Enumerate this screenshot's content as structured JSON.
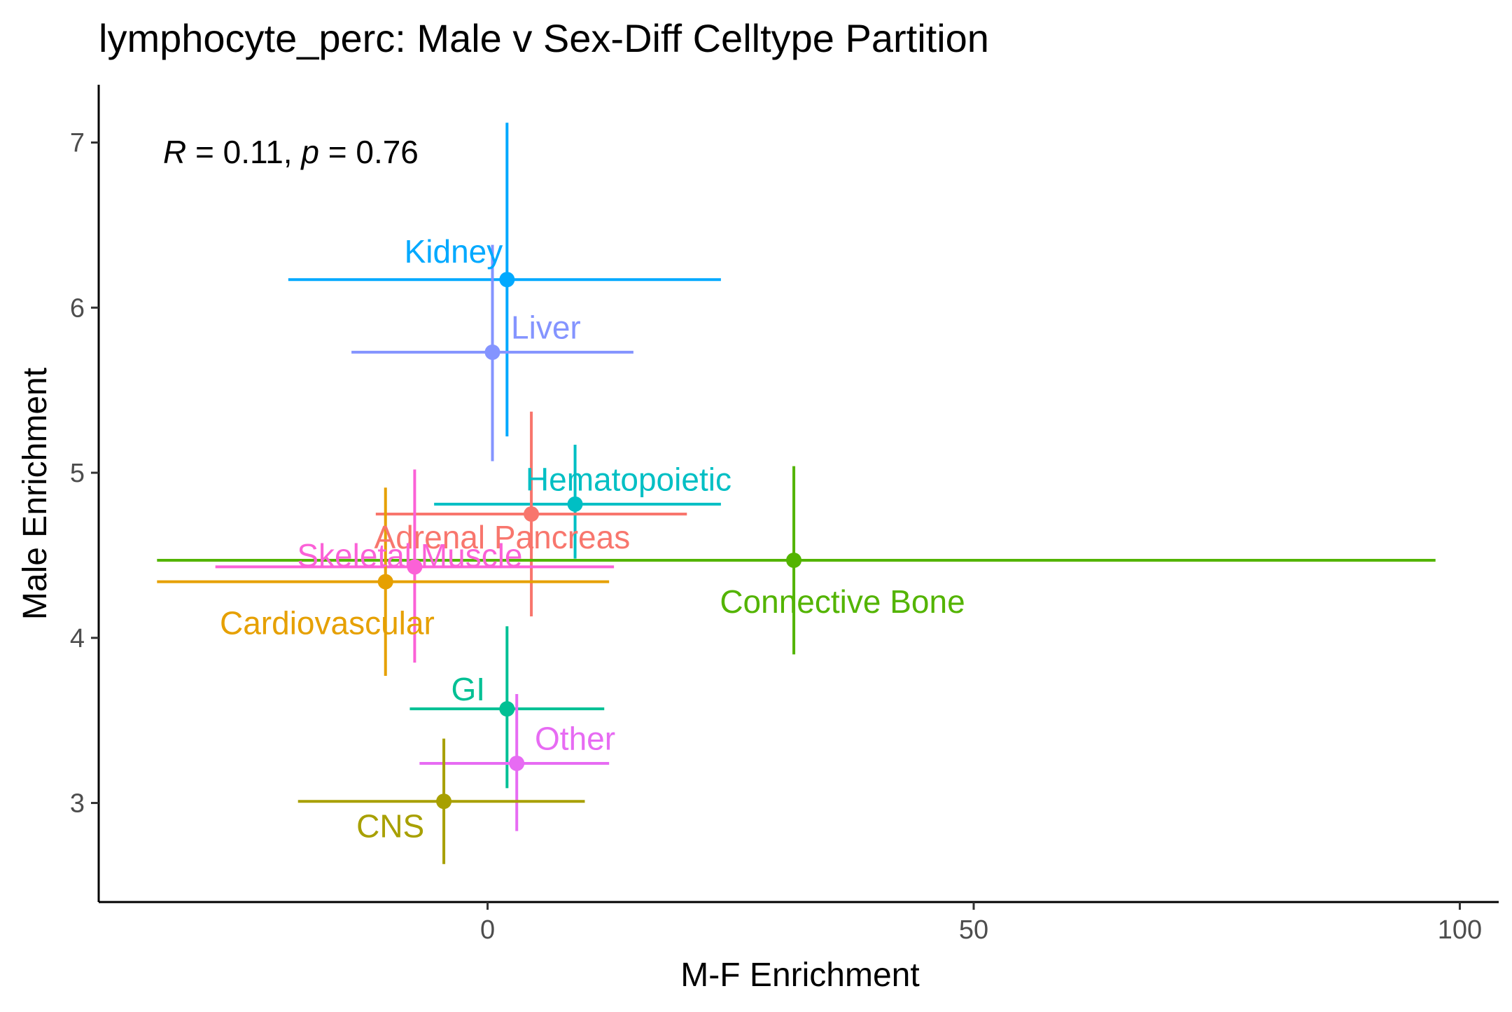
{
  "chart_data": {
    "type": "scatter",
    "title": "lymphocyte_perc: Male v Sex-Diff Celltype Partition",
    "xlabel": "M-F Enrichment",
    "ylabel": "Male Enrichment",
    "xlim": [
      -40,
      104
    ],
    "ylim": [
      2.4,
      7.35
    ],
    "x_ticks": [
      0,
      50,
      100
    ],
    "y_ticks": [
      3,
      4,
      5,
      6,
      7
    ],
    "grid": false,
    "legend": "none",
    "annotation": {
      "R_symbol": "R",
      "R_text": " = 0.11, ",
      "p_symbol": "p",
      "p_text": " = 0.76"
    },
    "points": [
      {
        "label": "Kidney",
        "color": "#00A9FF",
        "x": 2,
        "y": 6.17,
        "xmin": -20.5,
        "xmax": 24,
        "ymin": 5.22,
        "ymax": 7.12,
        "label_x": -3.5,
        "label_y": 6.34
      },
      {
        "label": "Liver",
        "color": "#8494FF",
        "x": 0.5,
        "y": 5.73,
        "xmin": -14,
        "xmax": 15,
        "ymin": 5.07,
        "ymax": 6.38,
        "label_x": 6,
        "label_y": 5.88
      },
      {
        "label": "Hematopoietic",
        "color": "#00BFC4",
        "x": 9,
        "y": 4.81,
        "xmin": -5.5,
        "xmax": 24,
        "ymin": 4.48,
        "ymax": 5.17,
        "label_x": 14.5,
        "label_y": 4.96
      },
      {
        "label": "Adrenal Pancreas",
        "color": "#F8766D",
        "x": 4.5,
        "y": 4.75,
        "xmin": -11.5,
        "xmax": 20.5,
        "ymin": 4.13,
        "ymax": 5.37,
        "label_x": 1.5,
        "label_y": 4.61
      },
      {
        "label": "Connective Bone",
        "color": "#53B400",
        "x": 31.5,
        "y": 4.47,
        "xmin": -34,
        "xmax": 97.5,
        "ymin": 3.9,
        "ymax": 5.04,
        "label_x": 36.5,
        "label_y": 4.22
      },
      {
        "label": "Skeletal Muscle",
        "color": "#FB61D7",
        "x": -7.5,
        "y": 4.43,
        "xmin": -28,
        "xmax": 13,
        "ymin": 3.85,
        "ymax": 5.02,
        "label_x": -8,
        "label_y": 4.5
      },
      {
        "label": "Cardiovascular",
        "color": "#E6A000",
        "x": -10.5,
        "y": 4.34,
        "xmin": -34,
        "xmax": 12.5,
        "ymin": 3.77,
        "ymax": 4.91,
        "label_x": -16.5,
        "label_y": 4.09
      },
      {
        "label": "GI",
        "color": "#00C094",
        "x": 2,
        "y": 3.57,
        "xmin": -8,
        "xmax": 12,
        "ymin": 3.09,
        "ymax": 4.07,
        "label_x": -2,
        "label_y": 3.69
      },
      {
        "label": "Other",
        "color": "#E76BF3",
        "x": 3,
        "y": 3.24,
        "xmin": -7,
        "xmax": 12.5,
        "ymin": 2.83,
        "ymax": 3.66,
        "label_x": 9,
        "label_y": 3.39
      },
      {
        "label": "CNS",
        "color": "#A8A000",
        "x": -4.5,
        "y": 3.01,
        "xmin": -19.5,
        "xmax": 10,
        "ymin": 2.63,
        "ymax": 3.39,
        "label_x": -10,
        "label_y": 2.86
      }
    ]
  }
}
